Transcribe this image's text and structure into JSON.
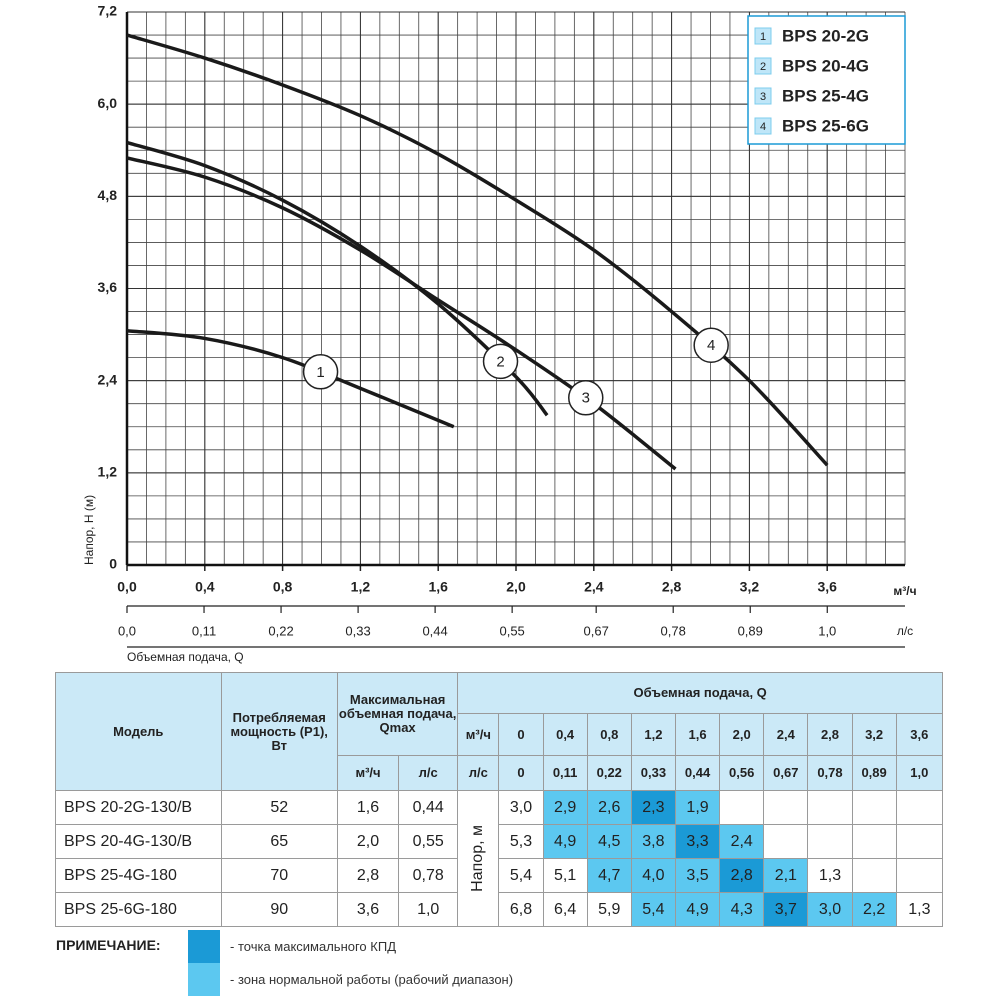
{
  "chart_data": {
    "type": "line",
    "ylabel": "Напор, H (м)",
    "xlabel": "Объемная подача, Q",
    "xunit": "м³/ч",
    "x2unit": "л/с",
    "xlim": [
      0,
      4.0
    ],
    "ylim": [
      0,
      7.2
    ],
    "xticks": [
      {
        "value": 0,
        "label": "0,0"
      },
      {
        "value": 0.4,
        "label": "0,4"
      },
      {
        "value": 0.8,
        "label": "0,8"
      },
      {
        "value": 1.2,
        "label": "1,2"
      },
      {
        "value": 1.6,
        "label": "1,6"
      },
      {
        "value": 2.0,
        "label": "2,0"
      },
      {
        "value": 2.4,
        "label": "2,4"
      },
      {
        "value": 2.8,
        "label": "2,8"
      },
      {
        "value": 3.2,
        "label": "3,2"
      },
      {
        "value": 3.6,
        "label": "3,6"
      }
    ],
    "yticks": [
      0,
      {
        "value": 1.2,
        "label": "1,2"
      },
      {
        "value": 2.4,
        "label": "2,4"
      },
      {
        "value": 3.6,
        "label": "3,6"
      },
      {
        "value": 4.8,
        "label": "4,8"
      },
      {
        "value": 6.0,
        "label": "6,0"
      },
      {
        "value": 7.2,
        "label": "7,2"
      }
    ],
    "x2lim": [
      0,
      1.111
    ],
    "x2ticks": [
      {
        "value": 0,
        "label": "0,0"
      },
      {
        "value": 0.11,
        "label": "0,11"
      },
      {
        "value": 0.22,
        "label": "0,22"
      },
      {
        "value": 0.33,
        "label": "0,33"
      },
      {
        "value": 0.44,
        "label": "0,44"
      },
      {
        "value": 0.55,
        "label": "0,55"
      },
      {
        "value": 0.67,
        "label": "0,67"
      },
      {
        "value": 0.78,
        "label": "0,78"
      },
      {
        "value": 0.89,
        "label": "0,89"
      },
      {
        "value": 1.0,
        "label": "1,0"
      }
    ],
    "grid": true,
    "legend_position": "upper right",
    "series": [
      {
        "name": "BPS 20-2G",
        "label": "1",
        "color": "#1a1a1a",
        "x": [
          0,
          0.4,
          0.8,
          1.2,
          1.68
        ],
        "values": [
          3.05,
          2.95,
          2.7,
          2.3,
          1.8
        ]
      },
      {
        "name": "BPS 20-4G",
        "label": "2",
        "color": "#1a1a1a",
        "x": [
          0,
          0.4,
          0.8,
          1.2,
          1.6,
          2.0,
          2.16
        ],
        "values": [
          5.5,
          5.2,
          4.75,
          4.15,
          3.4,
          2.45,
          1.95
        ]
      },
      {
        "name": "BPS 25-4G",
        "label": "3",
        "color": "#1a1a1a",
        "x": [
          0,
          0.4,
          0.8,
          1.2,
          1.6,
          2.0,
          2.4,
          2.82
        ],
        "values": [
          5.3,
          5.05,
          4.65,
          4.1,
          3.45,
          2.8,
          2.1,
          1.25
        ]
      },
      {
        "name": "BPS 25-6G",
        "label": "4",
        "color": "#1a1a1a",
        "x": [
          0,
          0.4,
          0.8,
          1.2,
          1.6,
          2.0,
          2.4,
          2.8,
          3.2,
          3.6
        ],
        "values": [
          6.9,
          6.6,
          6.25,
          5.85,
          5.35,
          4.75,
          4.1,
          3.3,
          2.4,
          1.3
        ]
      }
    ]
  },
  "table": {
    "header": {
      "model": "Модель",
      "power": "Потребляемая мощность (P1), Вт",
      "qmax": "Максимальная объемная подача, Qmax",
      "qmax_units": [
        "м³/ч",
        "л/с"
      ],
      "flow": "Объемная подача, Q",
      "flow_units": [
        "м³/ч",
        "л/с"
      ],
      "head": "Напор, м",
      "flow_m3h": [
        "0",
        "0,4",
        "0,8",
        "1,2",
        "1,6",
        "2,0",
        "2,4",
        "2,8",
        "3,2",
        "3,6"
      ],
      "flow_ls": [
        "0",
        "0,11",
        "0,22",
        "0,33",
        "0,44",
        "0,56",
        "0,67",
        "0,78",
        "0,89",
        "1,0"
      ]
    },
    "rows": [
      {
        "model": "BPS 20-2G-130/B",
        "power": "52",
        "qmax_m3h": "1,6",
        "qmax_ls": "0,44",
        "head": [
          "3,0",
          "2,9",
          "2,6",
          "2,3",
          "1,9",
          null,
          null,
          null,
          null,
          null
        ],
        "zones": [
          null,
          "zone",
          "zone",
          "best",
          "zone",
          null,
          null,
          null,
          null,
          null
        ]
      },
      {
        "model": "BPS 20-4G-130/B",
        "power": "65",
        "qmax_m3h": "2,0",
        "qmax_ls": "0,55",
        "head": [
          "5,3",
          "4,9",
          "4,5",
          "3,8",
          "3,3",
          "2,4",
          null,
          null,
          null,
          null
        ],
        "zones": [
          null,
          "zone",
          "zone",
          "zone",
          "best",
          "zone",
          null,
          null,
          null,
          null
        ]
      },
      {
        "model": "BPS 25-4G-180",
        "power": "70",
        "qmax_m3h": "2,8",
        "qmax_ls": "0,78",
        "head": [
          "5,4",
          "5,1",
          "4,7",
          "4,0",
          "3,5",
          "2,8",
          "2,1",
          "1,3",
          null,
          null
        ],
        "zones": [
          null,
          null,
          "zone",
          "zone",
          "zone",
          "best",
          "zone",
          null,
          null,
          null
        ]
      },
      {
        "model": "BPS 25-6G-180",
        "power": "90",
        "qmax_m3h": "3,6",
        "qmax_ls": "1,0",
        "head": [
          "6,8",
          "6,4",
          "5,9",
          "5,4",
          "4,9",
          "4,3",
          "3,7",
          "3,0",
          "2,2",
          "1,3"
        ],
        "zones": [
          null,
          null,
          null,
          "zone",
          "zone",
          "zone",
          "best",
          "zone",
          "zone",
          null
        ]
      }
    ]
  },
  "note": {
    "title": "ПРИМЕЧАНИЕ:",
    "items": [
      {
        "key": "best",
        "color": "#1b9ad6",
        "text": "- точка максимального КПД"
      },
      {
        "key": "zone",
        "color": "#5cc8f0",
        "text": "- зона нормальной работы (рабочий диапазон)"
      }
    ]
  }
}
